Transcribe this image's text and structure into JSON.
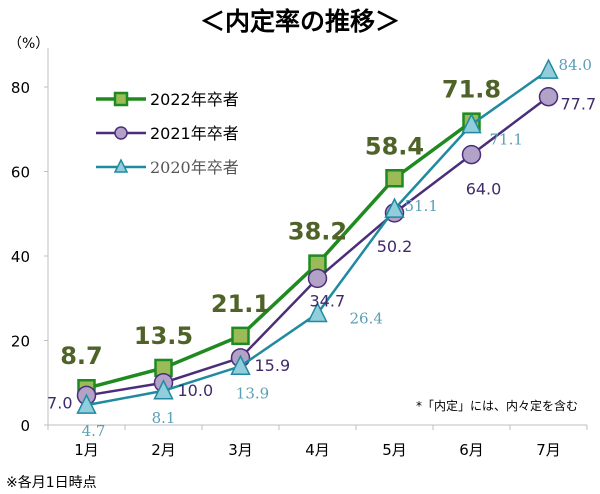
{
  "chart_data": {
    "type": "line",
    "title": "＜内定率の推移＞",
    "ylabel": "（%）",
    "xlabel": "",
    "categories": [
      "1月",
      "2月",
      "3月",
      "4月",
      "5月",
      "6月",
      "7月"
    ],
    "ylim": [
      0,
      88
    ],
    "yticks": [
      0,
      20,
      40,
      60,
      80
    ],
    "grid": false,
    "legend": "top-left",
    "series": [
      {
        "name": "2022年卒者",
        "marker": "square",
        "color": "#1f8a1f",
        "fill": "#9bbb59",
        "label_color": "#4f6228",
        "values": [
          8.7,
          13.5,
          21.1,
          38.2,
          58.4,
          71.8,
          null
        ],
        "labels": [
          "8.7",
          "13.5",
          "21.1",
          "38.2",
          "58.4",
          "71.8",
          null
        ]
      },
      {
        "name": "2021年卒者",
        "marker": "circle",
        "color": "#4b2e7a",
        "fill": "#b3a2c7",
        "label_color": "#3f2a6b",
        "values": [
          7.0,
          10.0,
          15.9,
          34.7,
          50.2,
          64.0,
          77.7
        ],
        "labels": [
          "7.0",
          "10.0",
          "15.9",
          "34.7",
          "50.2",
          "64.0",
          "77.7"
        ]
      },
      {
        "name": "2020年卒者",
        "marker": "triangle",
        "color": "#1f8aa0",
        "fill": "#92cddc",
        "label_color": "#5a9fb5",
        "values": [
          4.7,
          8.1,
          13.9,
          26.4,
          51.1,
          71.1,
          84.0
        ],
        "labels": [
          "4.7",
          "8.1",
          "13.9",
          "26.4",
          "51.1",
          "71.1",
          "84.0"
        ]
      }
    ],
    "annotations": [
      "*「内定」には、内々定を含む",
      "※各月1日時点"
    ]
  }
}
